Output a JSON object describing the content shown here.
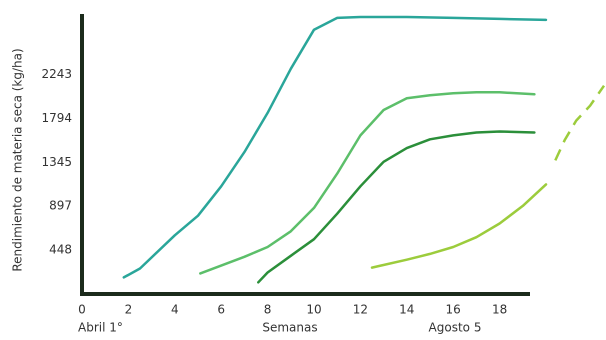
{
  "chart_data": {
    "type": "line",
    "y_label": "Rendimiento de materia seca (kg/ha)",
    "x_label": "Semanas",
    "annotations": [
      "Abril 1°",
      "Agosto 5"
    ],
    "xlim": [
      0,
      22.5
    ],
    "ylim": [
      0,
      2850
    ],
    "xticks": [
      0,
      2,
      4,
      6,
      8,
      10,
      12,
      14,
      16,
      18
    ],
    "yticks": [
      448,
      897,
      1345,
      1794,
      2243
    ],
    "grid": false,
    "series": [
      {
        "color": "#2aa69a",
        "dashed": false,
        "x": [
          1.8,
          2.5,
          4,
          5,
          6,
          7,
          8,
          9,
          10,
          11,
          12,
          14,
          16,
          18,
          20
        ],
        "values": [
          170,
          260,
          600,
          800,
          1100,
          1450,
          1850,
          2300,
          2700,
          2820,
          2830,
          2830,
          2820,
          2810,
          2800
        ]
      },
      {
        "color": "#5cbf6a",
        "dashed": false,
        "x": [
          5.1,
          6,
          7,
          8,
          9,
          10,
          11,
          12,
          13,
          14,
          15,
          16,
          17,
          18,
          19.5
        ],
        "values": [
          210,
          290,
          380,
          480,
          640,
          880,
          1230,
          1620,
          1880,
          2000,
          2030,
          2050,
          2060,
          2060,
          2040
        ]
      },
      {
        "color": "#2b8f3a",
        "dashed": false,
        "x": [
          7.6,
          8,
          9,
          10,
          11,
          12,
          13,
          14,
          15,
          16,
          17,
          18,
          19.5
        ],
        "values": [
          120,
          220,
          390,
          560,
          820,
          1100,
          1350,
          1490,
          1580,
          1620,
          1650,
          1660,
          1650
        ]
      },
      {
        "color": "#9ccc3c",
        "dashed": false,
        "x": [
          12.5,
          14,
          15,
          16,
          17,
          18,
          19,
          20
        ],
        "values": [
          270,
          350,
          410,
          480,
          580,
          720,
          900,
          1120
        ]
      },
      {
        "color": "#9ccc3c",
        "dashed": true,
        "x": [
          20.4,
          20.8,
          21.3,
          21.9,
          22.5
        ],
        "values": [
          1365,
          1570,
          1771,
          1924,
          2128
        ]
      }
    ]
  }
}
